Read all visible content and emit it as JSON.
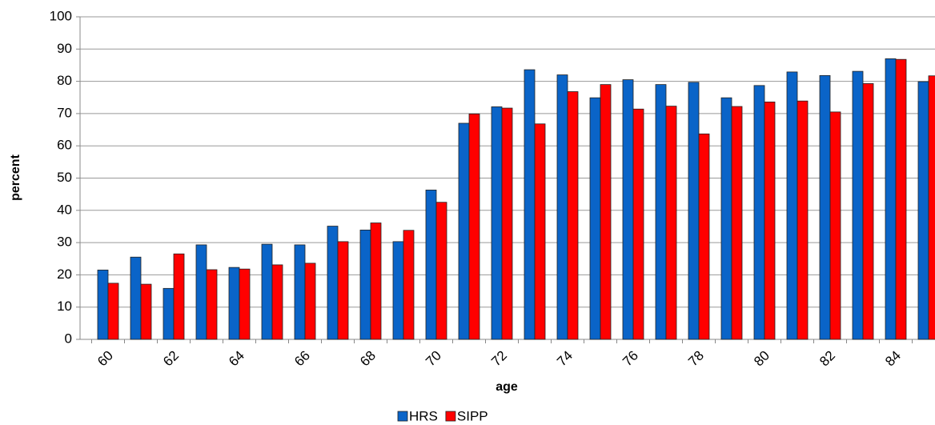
{
  "chart_data": {
    "type": "bar",
    "x_label": "age",
    "y_label": "percent",
    "categories": [
      "60",
      null,
      "62",
      null,
      "64",
      null,
      "66",
      null,
      "68",
      null,
      "70",
      null,
      "72",
      null,
      "74",
      null,
      "76",
      null,
      "78",
      null,
      "80",
      null,
      "82",
      null,
      "84",
      null
    ],
    "series": [
      {
        "name": "HRS",
        "color": "#0a64c8",
        "values": [
          21.5,
          25.5,
          15.8,
          29.3,
          22.3,
          29.5,
          29.3,
          35.1,
          33.9,
          30.3,
          46.3,
          67,
          72.1,
          83.6,
          82,
          74.9,
          80.5,
          79,
          79.7,
          74.9,
          78.7,
          82.9,
          81.8,
          83.1,
          87,
          79.9
        ]
      },
      {
        "name": "SIPP",
        "color": "#ff0000",
        "values": [
          17.4,
          17.1,
          26.5,
          21.6,
          21.8,
          23.1,
          23.6,
          30.3,
          36.1,
          33.8,
          42.5,
          69.9,
          71.7,
          66.8,
          76.8,
          79,
          71.4,
          72.3,
          63.7,
          72.2,
          73.6,
          73.9,
          70.5,
          79.3,
          86.8,
          81.7
        ]
      }
    ],
    "ylim": [
      0,
      100
    ],
    "yticks": [
      0,
      10,
      20,
      30,
      40,
      50,
      60,
      70,
      80,
      90,
      100
    ],
    "grid": true,
    "legend": "bottom"
  }
}
